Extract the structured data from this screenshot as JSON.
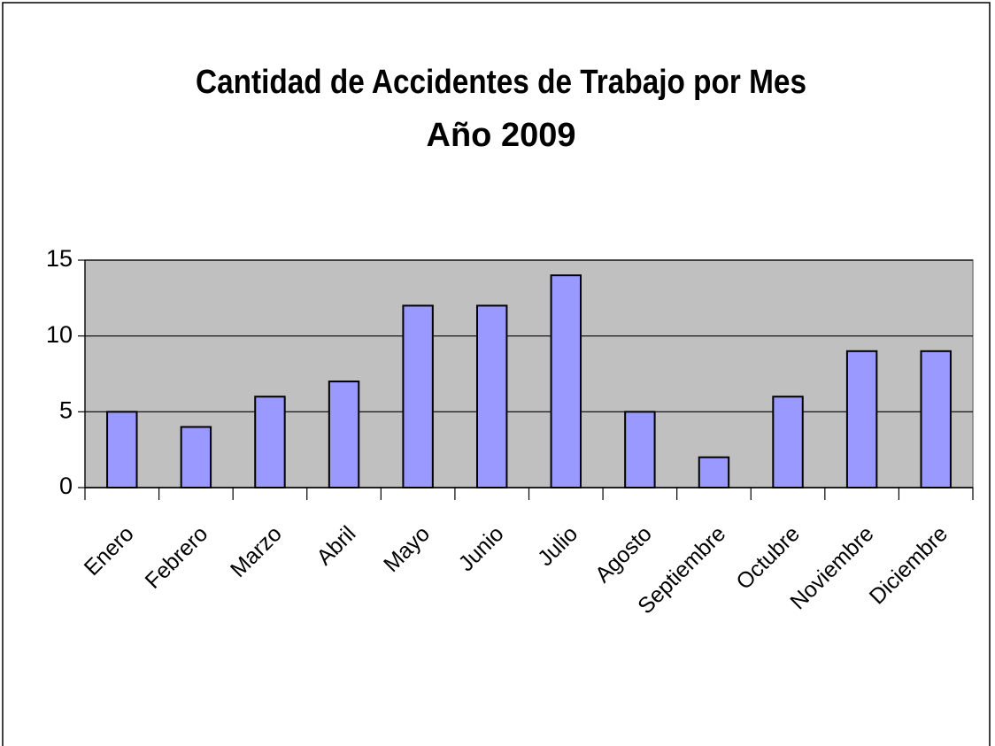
{
  "chart_data": {
    "type": "bar",
    "title": "Cantidad de Accidentes de Trabajo por Mes",
    "subtitle": "Año 2009",
    "categories": [
      "Enero",
      "Febrero",
      "Marzo",
      "Abril",
      "Mayo",
      "Junio",
      "Julio",
      "Agosto",
      "Septiembre",
      "Octubre",
      "Noviembre",
      "Diciembre"
    ],
    "values": [
      5,
      4,
      6,
      7,
      12,
      12,
      14,
      5,
      2,
      6,
      9,
      9
    ],
    "color": "#9999ff",
    "ylim": [
      0,
      15
    ],
    "yticks": [
      0,
      5,
      10,
      15
    ],
    "grid": true
  }
}
